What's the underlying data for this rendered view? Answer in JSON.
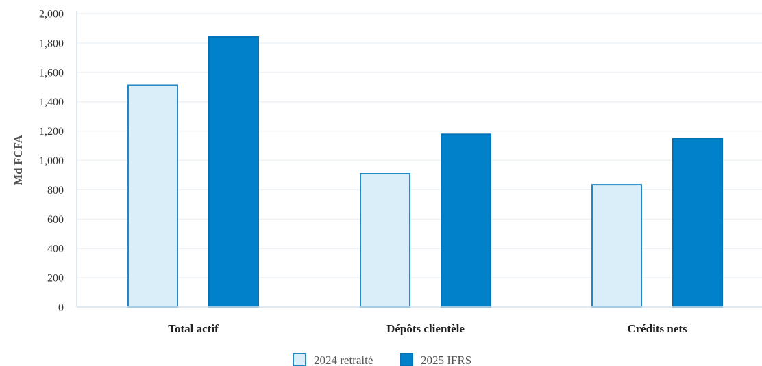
{
  "chart_data": {
    "type": "bar",
    "categories": [
      "Total actif",
      "Dépôts clientèle",
      "Crédits nets"
    ],
    "series": [
      {
        "name": "2024 retraité",
        "values": [
          1513,
          909,
          834
        ],
        "fill": "#daeef9",
        "stroke": "#1f88c9"
      },
      {
        "name": "2025 IFRS",
        "values": [
          1842,
          1178,
          1149
        ],
        "fill": "#0081c9",
        "stroke": "#0072b8"
      }
    ],
    "ylabel": "Md FCFA",
    "xlabel": "",
    "ylim": [
      0,
      2000
    ],
    "yticks": [
      "0",
      "200",
      "400",
      "600",
      "800",
      "1,000",
      "1,200",
      "1,400",
      "1,600",
      "1,800",
      "2,000"
    ],
    "ytick_values": [
      0,
      200,
      400,
      600,
      800,
      1000,
      1200,
      1400,
      1600,
      1800,
      2000
    ],
    "grid": true,
    "legend_position": "bottom-center",
    "colors": {
      "grid": "#eef2f6",
      "axis": "#d5e2ec"
    }
  }
}
